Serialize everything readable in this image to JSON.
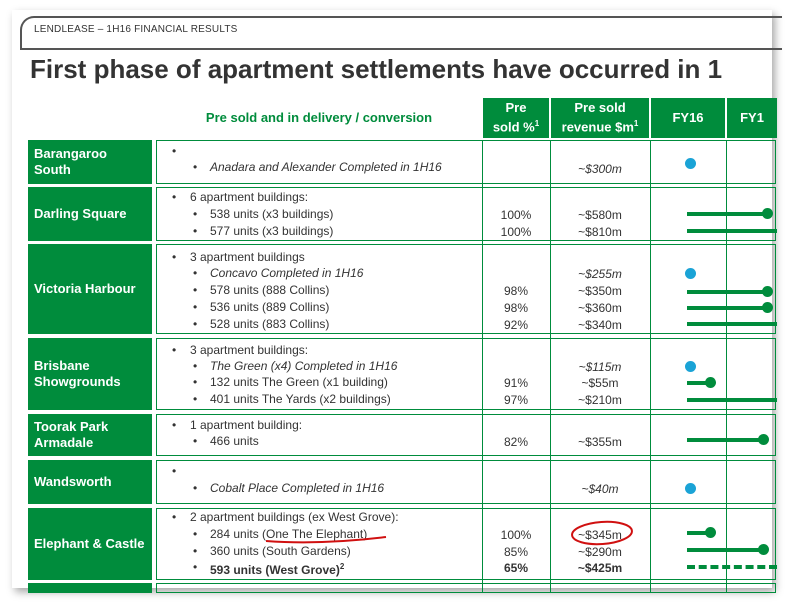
{
  "header": {
    "label": "LENDLEASE – 1H16 FINANCIAL RESULTS"
  },
  "title": "First phase of apartment settlements have occurred in 1",
  "columns": {
    "pipeline": "Pre sold and in delivery / conversion",
    "presold_a": "Pre",
    "presold_b": "sold %",
    "revenue_a": "Pre sold",
    "revenue_b": "revenue $m",
    "sup1": "1",
    "fy16": "FY16",
    "fy17": "FY1"
  },
  "rows": [
    {
      "name": "Barangaroo South",
      "lines": [
        "Anadara and Alexander Completed in 1H16"
      ],
      "pct": [
        ""
      ],
      "rev": [
        "~$300m"
      ]
    },
    {
      "name": "Darling Square",
      "lines": [
        "6 apartment buildings:",
        "538 units (x3 buildings)",
        "577 units (x3 buildings)"
      ],
      "pct": [
        "100%",
        "100%"
      ],
      "rev": [
        "~$580m",
        "~$810m"
      ]
    },
    {
      "name": "Victoria Harbour",
      "lines": [
        "3 apartment buildings",
        "Concavo Completed  in 1H16",
        "578 units (888 Collins)",
        "536 units (889 Collins)",
        "528 units (883 Collins)"
      ],
      "pct": [
        "98%",
        "98%",
        "92%"
      ],
      "rev": [
        "~$255m",
        "~$350m",
        "~$360m",
        "~$340m"
      ]
    },
    {
      "name": "Brisbane Showgrounds",
      "lines": [
        "3 apartment buildings:",
        "The Green (x4) Completed in 1H16",
        "132 units The Green (x1 building)",
        "401 units The Yards (x2 buildings)"
      ],
      "pct": [
        "91%",
        "97%"
      ],
      "rev": [
        "~$115m",
        "~$55m",
        "~$210m"
      ]
    },
    {
      "name": "Toorak Park Armadale",
      "lines": [
        "1 apartment building:",
        "466 units"
      ],
      "pct": [
        "82%"
      ],
      "rev": [
        "~$355m"
      ]
    },
    {
      "name": "Wandsworth",
      "lines": [
        "Cobalt Place Completed in 1H16"
      ],
      "pct": [
        ""
      ],
      "rev": [
        "~$40m"
      ]
    },
    {
      "name": "Elephant & Castle",
      "lines": [
        "2 apartment buildings (ex West Grove):",
        "284 units (One The Elephant)",
        "360 units (South Gardens)",
        "593 units (West Grove)"
      ],
      "sup2": "2",
      "pct": [
        "100%",
        "85%",
        "65%"
      ],
      "rev": [
        "~$345m",
        "~$290m",
        "~$425m"
      ]
    }
  ],
  "colors": {
    "green": "#008c3c",
    "blue": "#1aa3d6",
    "annotation": "#d01010"
  }
}
